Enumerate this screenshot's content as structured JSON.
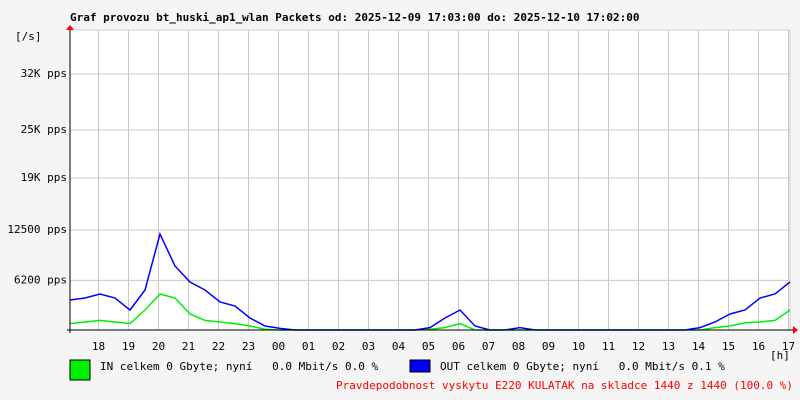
{
  "chart_data": {
    "type": "line",
    "title": "Graf provozu bt_huski_ap1_wlan Packets od: 2025-12-09 17:03:00 do: 2025-12-10 17:02:00",
    "ylabel": "[/s]",
    "xlabel": "[h]",
    "annotation": "Pravdepodobnost vyskytu E220 KULATAK na skladce 1440 z 1440 (100.0 %)",
    "grid": true,
    "xlim": [
      0,
      24
    ],
    "ylim": [
      0,
      37500
    ],
    "yticks": [
      {
        "value": 6200,
        "label": "6200 pps"
      },
      {
        "value": 12500,
        "label": "12500 pps"
      },
      {
        "value": 19000,
        "label": "19K pps"
      },
      {
        "value": 25000,
        "label": "25K pps"
      },
      {
        "value": 32000,
        "label": "32K pps"
      }
    ],
    "xticks": [
      {
        "value": 0.95,
        "label": "18"
      },
      {
        "value": 1.95,
        "label": "19"
      },
      {
        "value": 2.95,
        "label": "20"
      },
      {
        "value": 3.95,
        "label": "21"
      },
      {
        "value": 4.95,
        "label": "22"
      },
      {
        "value": 5.95,
        "label": "23"
      },
      {
        "value": 6.95,
        "label": "00"
      },
      {
        "value": 7.95,
        "label": "01"
      },
      {
        "value": 8.95,
        "label": "02"
      },
      {
        "value": 9.95,
        "label": "03"
      },
      {
        "value": 10.95,
        "label": "04"
      },
      {
        "value": 11.95,
        "label": "05"
      },
      {
        "value": 12.95,
        "label": "06"
      },
      {
        "value": 13.95,
        "label": "07"
      },
      {
        "value": 14.95,
        "label": "08"
      },
      {
        "value": 15.95,
        "label": "09"
      },
      {
        "value": 16.95,
        "label": "10"
      },
      {
        "value": 17.95,
        "label": "11"
      },
      {
        "value": 18.95,
        "label": "12"
      },
      {
        "value": 19.95,
        "label": "13"
      },
      {
        "value": 20.95,
        "label": "14"
      },
      {
        "value": 21.95,
        "label": "15"
      },
      {
        "value": 22.95,
        "label": "16"
      },
      {
        "value": 23.95,
        "label": "17"
      }
    ],
    "x": [
      0,
      0.5,
      1,
      1.5,
      2,
      2.5,
      3,
      3.5,
      4,
      4.5,
      5,
      5.5,
      6,
      6.5,
      7,
      7.5,
      8,
      8.5,
      9,
      9.5,
      10,
      10.5,
      11,
      11.5,
      12,
      12.5,
      13,
      13.5,
      14,
      14.5,
      15,
      15.5,
      16,
      16.5,
      17,
      17.5,
      18,
      18.5,
      19,
      19.5,
      20,
      20.5,
      21,
      21.5,
      22,
      22.5,
      23,
      23.5,
      24
    ],
    "series": [
      {
        "name": "IN celkem 0 Gbyte; nyní   0.0 Mbit/s 0.0 %",
        "color": "#00f000",
        "values": [
          800,
          1000,
          1200,
          1000,
          800,
          2500,
          4500,
          4000,
          2000,
          1200,
          1000,
          800,
          500,
          100,
          0,
          0,
          0,
          0,
          0,
          0,
          0,
          0,
          0,
          0,
          100,
          300,
          800,
          0,
          0,
          0,
          0,
          0,
          0,
          0,
          0,
          0,
          0,
          0,
          0,
          0,
          0,
          0,
          0,
          300,
          500,
          900,
          1000,
          1200,
          2500
        ]
      },
      {
        "name": "OUT celkem 0 Gbyte; nyní   0.0 Mbit/s 0.1 %",
        "color": "#0000ff",
        "values": [
          3750,
          4000,
          4500,
          4000,
          2500,
          5000,
          12000,
          8000,
          6000,
          5000,
          3500,
          3000,
          1500,
          500,
          200,
          0,
          0,
          0,
          0,
          0,
          0,
          0,
          0,
          0,
          300,
          1500,
          2500,
          500,
          0,
          0,
          300,
          0,
          0,
          0,
          0,
          0,
          0,
          0,
          0,
          0,
          0,
          0,
          300,
          1000,
          2000,
          2500,
          4000,
          4500,
          6000
        ]
      }
    ]
  }
}
